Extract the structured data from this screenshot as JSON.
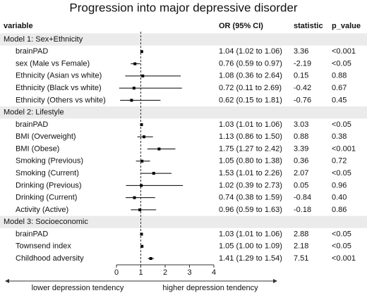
{
  "chart_data": {
    "type": "forest",
    "title": "Progression into major depressive disorder",
    "columns": [
      "variable",
      "OR (95% CI)",
      "statistic",
      "p_value"
    ],
    "xlim": [
      0,
      4
    ],
    "xticks": [
      0,
      1,
      2,
      3,
      4
    ],
    "ref_line": 1,
    "footer_left": "lower depression tendency",
    "footer_right": "higher depression tendency",
    "groups": [
      {
        "name": "Model 1: Sex+Ethnicity",
        "rows": [
          {
            "variable": "brainPAD",
            "or": 1.04,
            "lo": 1.02,
            "hi": 1.06,
            "or_ci": "1.04 (1.02 to 1.06)",
            "statistic": 3.36,
            "p_value": "<0.001"
          },
          {
            "variable": "sex (Male vs Female)",
            "or": 0.76,
            "lo": 0.59,
            "hi": 0.97,
            "or_ci": "0.76 (0.59 to 0.97)",
            "statistic": -2.19,
            "p_value": "<0.05"
          },
          {
            "variable": "Ethnicity (Asian vs white)",
            "or": 1.08,
            "lo": 0.36,
            "hi": 2.64,
            "or_ci": "1.08 (0.36 to 2.64)",
            "statistic": 0.15,
            "p_value": "0.88"
          },
          {
            "variable": "Ethnicity (Black vs white)",
            "or": 0.72,
            "lo": 0.11,
            "hi": 2.69,
            "or_ci": "0.72 (0.11 to 2.69)",
            "statistic": -0.42,
            "p_value": "0.67"
          },
          {
            "variable": "Ethnicity (Others vs white)",
            "or": 0.62,
            "lo": 0.15,
            "hi": 1.81,
            "or_ci": "0.62 (0.15 to 1.81)",
            "statistic": -0.76,
            "p_value": "0.45"
          }
        ]
      },
      {
        "name": "Model 2: Lifestyle",
        "rows": [
          {
            "variable": "brainPAD",
            "or": 1.03,
            "lo": 1.01,
            "hi": 1.06,
            "or_ci": "1.03 (1.01 to 1.06)",
            "statistic": 3.03,
            "p_value": "<0.05"
          },
          {
            "variable": "BMI (Overweight)",
            "or": 1.13,
            "lo": 0.86,
            "hi": 1.5,
            "or_ci": "1.13 (0.86 to 1.50)",
            "statistic": 0.88,
            "p_value": "0.38"
          },
          {
            "variable": "BMI (Obese)",
            "or": 1.75,
            "lo": 1.27,
            "hi": 2.42,
            "or_ci": "1.75 (1.27 to 2.42)",
            "statistic": 3.39,
            "p_value": "<0.001"
          },
          {
            "variable": "Smoking (Previous)",
            "or": 1.05,
            "lo": 0.8,
            "hi": 1.38,
            "or_ci": "1.05 (0.80 to 1.38)",
            "statistic": 0.36,
            "p_value": "0.72"
          },
          {
            "variable": "Smoking (Current)",
            "or": 1.53,
            "lo": 1.01,
            "hi": 2.26,
            "or_ci": "1.53 (1.01 to 2.26)",
            "statistic": 2.07,
            "p_value": "<0.05"
          },
          {
            "variable": "Drinking (Previous)",
            "or": 1.02,
            "lo": 0.39,
            "hi": 2.73,
            "or_ci": "1.02 (0.39 to 2.73)",
            "statistic": 0.05,
            "p_value": "0.96"
          },
          {
            "variable": "Drinking (Current)",
            "or": 0.74,
            "lo": 0.38,
            "hi": 1.59,
            "or_ci": "0.74 (0.38 to 1.59)",
            "statistic": -0.84,
            "p_value": "0.40"
          },
          {
            "variable": "Activity (Active)",
            "or": 0.96,
            "lo": 0.59,
            "hi": 1.63,
            "or_ci": "0.96 (0.59 to 1.63)",
            "statistic": -0.18,
            "p_value": "0.86"
          }
        ]
      },
      {
        "name": "Model 3: Socioeconomic",
        "rows": [
          {
            "variable": "brainPAD",
            "or": 1.03,
            "lo": 1.01,
            "hi": 1.06,
            "or_ci": "1.03 (1.01 to 1.06)",
            "statistic": 2.88,
            "p_value": "<0.05"
          },
          {
            "variable": "Townsend index",
            "or": 1.05,
            "lo": 1.0,
            "hi": 1.09,
            "or_ci": "1.05 (1.00 to 1.09)",
            "statistic": 2.18,
            "p_value": "<0.05"
          },
          {
            "variable": "Childhood adversity",
            "or": 1.41,
            "lo": 1.29,
            "hi": 1.54,
            "or_ci": "1.41 (1.29 to 1.54)",
            "statistic": 7.51,
            "p_value": "<0.001"
          }
        ]
      }
    ]
  }
}
